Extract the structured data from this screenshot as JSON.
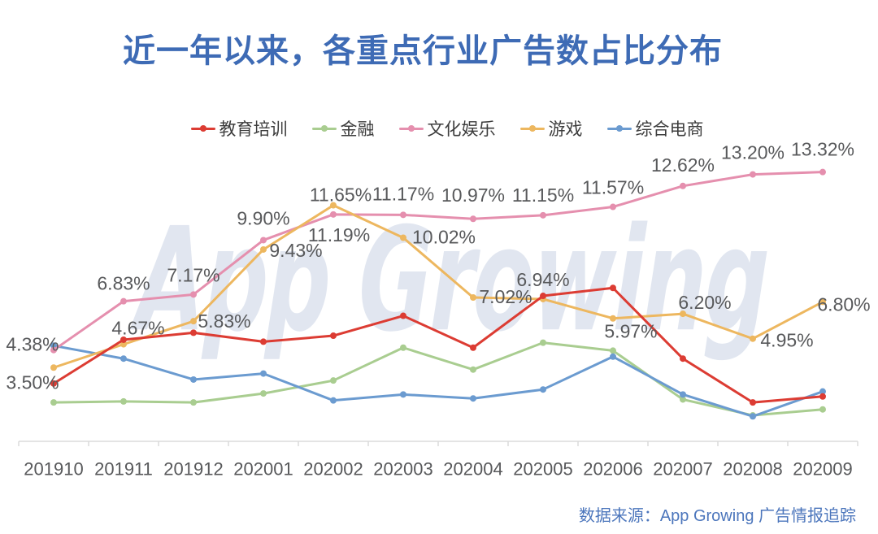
{
  "page": {
    "title": "近一年以来，各重点行业广告数占比分布",
    "source_note": "数据来源：App Growing 广告情报追踪",
    "watermark": "App Growing"
  },
  "colors": {
    "title_text": "#3E6BB5",
    "source_text": "#4C76BC",
    "value_label_text": "#58595B",
    "axis_line": "#DBDBDB",
    "x_tick_label": "#58595B"
  },
  "chart_data": {
    "type": "line",
    "title": "近一年以来，各重点行业广告数占比分布",
    "xlabel": "",
    "ylabel": "",
    "ylim": [
      0,
      15
    ],
    "grid": false,
    "legend_position": "top",
    "value_label_suffix": "%",
    "categories": [
      "201910",
      "201911",
      "201912",
      "202001",
      "202002",
      "202003",
      "202004",
      "202005",
      "202006",
      "202007",
      "202008",
      "202009"
    ],
    "series": [
      {
        "id": "education",
        "name": "教育培训",
        "color": "#DC3C33",
        "values": [
          2.7,
          4.9,
          5.25,
          4.8,
          5.1,
          6.1,
          4.5,
          7.1,
          7.5,
          3.95,
          1.75,
          2.05
        ],
        "point_labels": null
      },
      {
        "id": "finance",
        "name": "金融",
        "color": "#A9CD90",
        "values": [
          1.75,
          1.8,
          1.75,
          2.2,
          2.85,
          4.5,
          3.4,
          4.75,
          4.35,
          1.9,
          1.1,
          1.4
        ],
        "point_labels": null
      },
      {
        "id": "culture-entertainment",
        "name": "文化娱乐",
        "color": "#E58FAE",
        "values": [
          4.38,
          6.83,
          7.17,
          9.9,
          11.19,
          11.17,
          10.97,
          11.15,
          11.57,
          12.62,
          13.2,
          13.32
        ],
        "point_labels": [
          "4.38%",
          "6.83%",
          "7.17%",
          "9.90%",
          "11.19%",
          "11.17%",
          "10.97%",
          "11.15%",
          "11.57%",
          "12.62%",
          "13.20%",
          "13.32%"
        ],
        "label_offsets": [
          [
            -26,
            -7
          ],
          [
            0,
            -22
          ],
          [
            0,
            -24
          ],
          [
            0,
            -27
          ],
          [
            7,
            25
          ],
          [
            0,
            -26
          ],
          [
            0,
            -29
          ],
          [
            0,
            -25
          ],
          [
            0,
            -24
          ],
          [
            0,
            -26
          ],
          [
            0,
            -27
          ],
          [
            0,
            -28
          ]
        ]
      },
      {
        "id": "games",
        "name": "游戏",
        "color": "#EDB75F",
        "values": [
          3.5,
          4.67,
          5.83,
          9.43,
          11.65,
          10.02,
          7.02,
          6.94,
          5.97,
          6.2,
          4.95,
          6.8
        ],
        "point_labels": [
          "3.50%",
          "4.67%",
          "5.83%",
          "9.43%",
          "11.65%",
          "10.02%",
          "7.02%",
          "6.94%",
          "5.97%",
          "6.20%",
          "4.95%",
          "6.80%"
        ],
        "label_offsets": [
          [
            -26,
            18
          ],
          [
            18,
            -20
          ],
          [
            38,
            0
          ],
          [
            40,
            1
          ],
          [
            9,
            -13
          ],
          [
            50,
            -1
          ],
          [
            40,
            -1
          ],
          [
            0,
            -24
          ],
          [
            22,
            16
          ],
          [
            27,
            -14
          ],
          [
            42,
            2
          ],
          [
            26,
            3
          ]
        ]
      },
      {
        "id": "ecommerce",
        "name": "综合电商",
        "color": "#6B9BD0",
        "values": [
          4.6,
          3.95,
          2.9,
          3.2,
          1.85,
          2.15,
          1.95,
          2.4,
          4.05,
          2.15,
          1.05,
          2.3
        ],
        "point_labels": null
      }
    ],
    "draw_order": [
      "finance",
      "ecommerce",
      "culture-entertainment",
      "games",
      "education"
    ]
  }
}
